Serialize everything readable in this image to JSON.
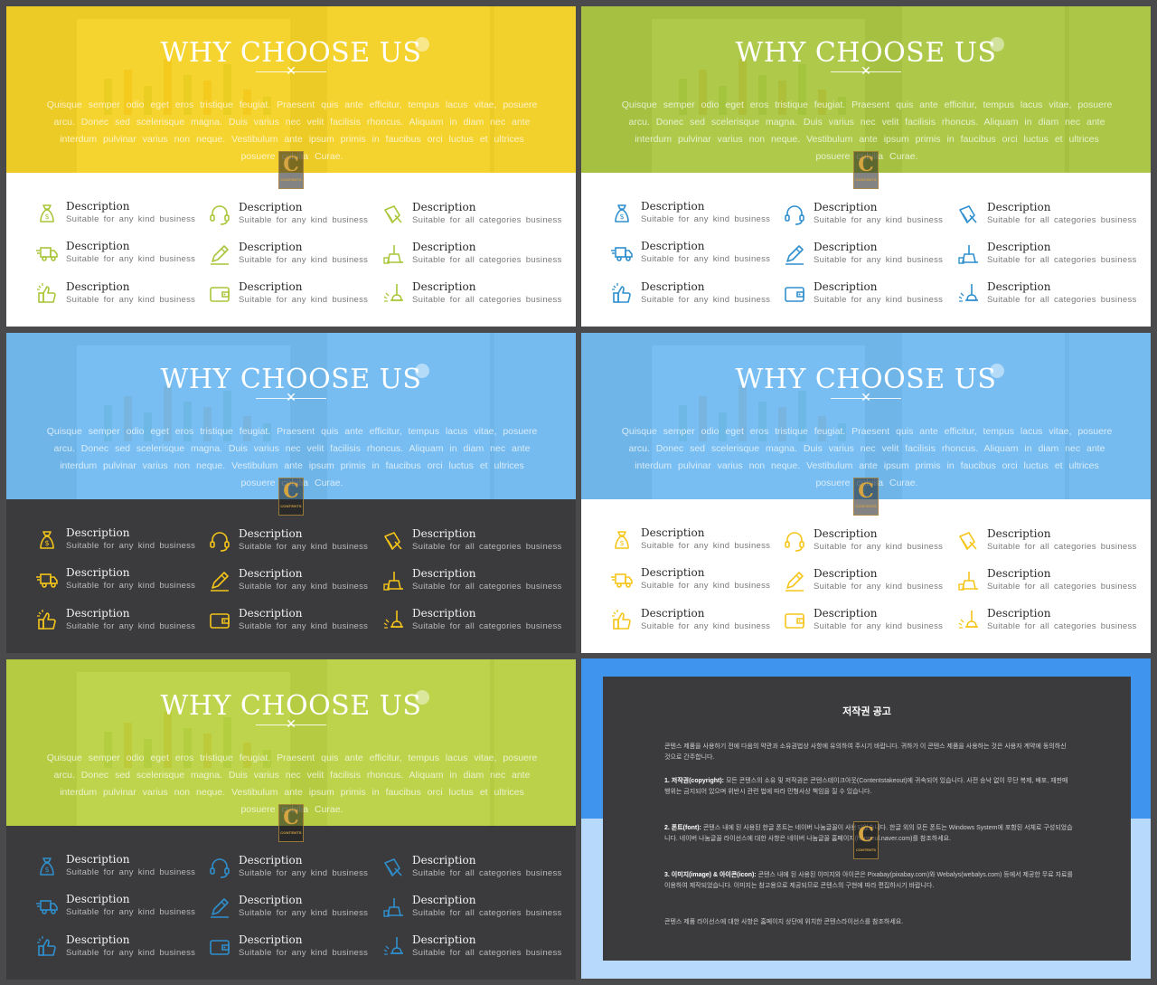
{
  "slide": {
    "title": "WHY CHOOSE US",
    "body": "Quisque semper odio eget eros tristique feugiat. Praesent quis ante efficitur, tempus lacus vitae, posuere arcu. Donec sed scelerisque magna. Duis varius nec velit facilisis rhoncus. Aliquam in diam nec ante interdum pulvinar varius non neque. Vestibulum ante ipsum primis in faucibus orci luctus et ultrices posuere cubilia Curae.",
    "logo_letter": "C",
    "logo_text": "CONTENTS",
    "features": [
      {
        "title": "Description",
        "sub": "Suitable for any kind business",
        "icon": "money-bag-icon"
      },
      {
        "title": "Description",
        "sub": "Suitable for any kind business",
        "icon": "headset-icon"
      },
      {
        "title": "Description",
        "sub": "Suitable for all categories business",
        "icon": "dustpan-icon"
      },
      {
        "title": "Description",
        "sub": "Suitable for any kind business",
        "icon": "delivery-truck-icon"
      },
      {
        "title": "Description",
        "sub": "Suitable for any kind business",
        "icon": "pencil-icon"
      },
      {
        "title": "Description",
        "sub": "Suitable for all categories business",
        "icon": "cleaning-tools-icon"
      },
      {
        "title": "Description",
        "sub": "Suitable for any kind business",
        "icon": "thumbs-up-icon"
      },
      {
        "title": "Description",
        "sub": "Suitable for any kind business",
        "icon": "wallet-icon"
      },
      {
        "title": "Description",
        "sub": "Suitable for all categories business",
        "icon": "plunger-icon"
      }
    ]
  },
  "variants": [
    {
      "name": "yellow-light",
      "overlay": "#f7d21c",
      "panel": "light",
      "icon_color": "#a9c63a"
    },
    {
      "name": "green-light",
      "overlay": "#a9c63a",
      "panel": "light",
      "icon_color": "#2f8fce"
    },
    {
      "name": "blue-dark",
      "overlay": "#6cb9f3",
      "panel": "dark",
      "icon_color": "#f5c51a"
    },
    {
      "name": "blue-light",
      "overlay": "#6cb9f3",
      "panel": "light",
      "icon_color": "#f5c51a"
    },
    {
      "name": "green-dark",
      "overlay": "#b9d23b",
      "panel": "dark",
      "icon_color": "#2f8fce"
    }
  ],
  "copyright": {
    "title": "저작권 공고",
    "intro": "콘텐스 제품을 사용하기 전에 다음의 약관과 소유권법상 사항에 유의하여 주시기 바랍니다. 귀하가 이 콘텐스 제품을 사용하는 것은 사용자 계약에 동의하신 것으로 간주합니다.",
    "p1_label": "1. 저작권(copyright):",
    "p1": " 모든 콘텐스의 소유 및 저작권은 콘텐스테이크아웃(Contentstakeout)에 귀속되어 있습니다. 사전 승낙 없이 무단 복제, 배포, 재판매 행위는 금지되어 있으며 위반시 관련 법에 따라 민형사상 책임을 질 수 있습니다.",
    "p2_label": "2. 폰트(font):",
    "p2": " 콘텐스 내에 된 사용된 한글 폰트는 네이버 나눔글꼴이 사용되었습니다. 한글 외의 모든 폰트는 Windows System에 포함된 서체로 구성되었습니다. 네이버 나눔글꼴 라이선스에 대한 사항은 네이버 나눔글꼴 홈페이지(hangeul.naver.com)를 참조하세요.",
    "p3_label": "3. 이미지(image) & 아이콘(icon):",
    "p3": " 콘텐스 내에 된 사용된 이미지와 아이콘은 Pixabay(pixabay.com)와 Webalys(webalys.com) 등에서 제공한 무료 자료를 이용하여 제작되었습니다. 이미지는 참고용으로 제공되므로 콘텐스의 구현에 따라 편집하시기 바랍니다.",
    "outro": "콘텐스 제품 라이선스에 대한 사항은 홈페이지 상단에 위치한 콘텐스라이선스를 참조하세요.",
    "logo_letter": "C",
    "logo_text": "CONTENTS"
  }
}
